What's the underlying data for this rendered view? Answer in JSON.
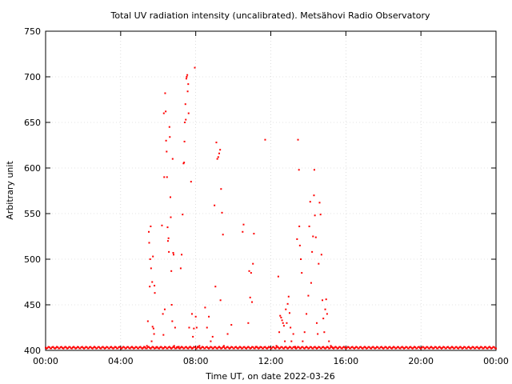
{
  "chart_data": {
    "type": "scatter",
    "title": "Total UV radiation intensity (uncalibrated). Metsähovi Radio Observatory",
    "xlabel": "Time UT, on date 2022-03-26",
    "ylabel": "Arbitrary unit",
    "xlim": [
      0,
      24
    ],
    "ylim": [
      400,
      750
    ],
    "x_ticks": [
      {
        "value": 0,
        "label": "00:00"
      },
      {
        "value": 4,
        "label": "04:00"
      },
      {
        "value": 8,
        "label": "08:00"
      },
      {
        "value": 12,
        "label": "12:00"
      },
      {
        "value": 16,
        "label": "16:00"
      },
      {
        "value": 20,
        "label": "20:00"
      },
      {
        "value": 24,
        "label": "00:00"
      }
    ],
    "y_ticks": [
      {
        "value": 400,
        "label": "400"
      },
      {
        "value": 450,
        "label": "450"
      },
      {
        "value": 500,
        "label": "500"
      },
      {
        "value": 550,
        "label": "550"
      },
      {
        "value": 600,
        "label": "600"
      },
      {
        "value": 650,
        "label": "650"
      },
      {
        "value": 700,
        "label": "700"
      },
      {
        "value": 750,
        "label": "750"
      }
    ],
    "grid": true,
    "point_color": "#ff0000",
    "baseline": {
      "value": 402,
      "x_start": 0,
      "x_end": 24,
      "step": 0.05
    },
    "series": [
      {
        "points": [
          [
            5.3,
            403
          ],
          [
            5.4,
            405
          ],
          [
            5.45,
            432
          ],
          [
            5.5,
            530
          ],
          [
            5.52,
            518
          ],
          [
            5.55,
            470
          ],
          [
            5.57,
            500
          ],
          [
            5.6,
            536
          ],
          [
            5.62,
            490
          ],
          [
            5.65,
            410
          ],
          [
            5.68,
            475
          ],
          [
            5.7,
            426
          ],
          [
            5.72,
            503
          ],
          [
            5.75,
            424
          ],
          [
            5.78,
            418
          ],
          [
            5.8,
            471
          ],
          [
            5.82,
            463
          ],
          [
            5.9,
            403
          ],
          [
            6.2,
            537
          ],
          [
            6.25,
            440
          ],
          [
            6.28,
            417
          ],
          [
            6.3,
            660
          ],
          [
            6.32,
            590
          ],
          [
            6.35,
            445
          ],
          [
            6.37,
            682
          ],
          [
            6.4,
            662
          ],
          [
            6.42,
            630
          ],
          [
            6.45,
            618
          ],
          [
            6.47,
            590
          ],
          [
            6.5,
            535
          ],
          [
            6.52,
            520
          ],
          [
            6.55,
            523
          ],
          [
            6.57,
            508
          ],
          [
            6.6,
            645
          ],
          [
            6.62,
            634
          ],
          [
            6.65,
            568
          ],
          [
            6.67,
            546
          ],
          [
            6.7,
            487
          ],
          [
            6.72,
            450
          ],
          [
            6.75,
            432
          ],
          [
            6.77,
            610
          ],
          [
            6.8,
            507
          ],
          [
            6.82,
            505
          ],
          [
            6.85,
            405
          ],
          [
            6.9,
            425
          ],
          [
            7.0,
            403
          ],
          [
            7.1,
            404
          ],
          [
            7.2,
            490
          ],
          [
            7.25,
            505
          ],
          [
            7.3,
            549
          ],
          [
            7.35,
            605
          ],
          [
            7.38,
            606
          ],
          [
            7.4,
            629
          ],
          [
            7.42,
            650
          ],
          [
            7.45,
            670
          ],
          [
            7.47,
            653
          ],
          [
            7.5,
            698
          ],
          [
            7.52,
            700
          ],
          [
            7.55,
            702
          ],
          [
            7.57,
            684
          ],
          [
            7.6,
            692
          ],
          [
            7.62,
            660
          ],
          [
            7.65,
            425
          ],
          [
            7.7,
            404
          ],
          [
            7.75,
            585
          ],
          [
            7.8,
            440
          ],
          [
            7.85,
            415
          ],
          [
            7.9,
            424
          ],
          [
            7.95,
            710
          ],
          [
            8.0,
            437
          ],
          [
            8.05,
            425
          ],
          [
            8.1,
            404
          ],
          [
            8.2,
            405
          ],
          [
            8.5,
            447
          ],
          [
            8.6,
            425
          ],
          [
            8.7,
            437
          ],
          [
            8.8,
            410
          ],
          [
            8.9,
            415
          ],
          [
            9.0,
            559
          ],
          [
            9.05,
            470
          ],
          [
            9.1,
            628
          ],
          [
            9.15,
            610
          ],
          [
            9.2,
            612
          ],
          [
            9.25,
            616
          ],
          [
            9.3,
            620
          ],
          [
            9.32,
            455
          ],
          [
            9.35,
            577
          ],
          [
            9.4,
            551
          ],
          [
            9.45,
            527
          ],
          [
            9.5,
            405
          ],
          [
            9.7,
            418
          ],
          [
            9.9,
            428
          ],
          [
            10.5,
            530
          ],
          [
            10.55,
            538
          ],
          [
            10.8,
            430
          ],
          [
            10.85,
            487
          ],
          [
            10.9,
            458
          ],
          [
            10.95,
            485
          ],
          [
            11.0,
            453
          ],
          [
            11.05,
            495
          ],
          [
            11.1,
            528
          ],
          [
            11.2,
            404
          ],
          [
            11.4,
            403
          ],
          [
            11.7,
            631
          ],
          [
            12.3,
            405
          ],
          [
            12.4,
            481
          ],
          [
            12.45,
            420
          ],
          [
            12.5,
            438
          ],
          [
            12.55,
            436
          ],
          [
            12.6,
            433
          ],
          [
            12.65,
            430
          ],
          [
            12.7,
            427
          ],
          [
            12.75,
            410
          ],
          [
            12.8,
            445
          ],
          [
            12.85,
            430
          ],
          [
            12.9,
            451
          ],
          [
            12.95,
            459
          ],
          [
            13.0,
            441
          ],
          [
            13.05,
            425
          ],
          [
            13.1,
            410
          ],
          [
            13.2,
            418
          ],
          [
            13.3,
            404
          ],
          [
            13.4,
            522
          ],
          [
            13.45,
            631
          ],
          [
            13.5,
            598
          ],
          [
            13.52,
            536
          ],
          [
            13.55,
            515
          ],
          [
            13.6,
            500
          ],
          [
            13.65,
            485
          ],
          [
            13.7,
            410
          ],
          [
            13.8,
            420
          ],
          [
            13.9,
            440
          ],
          [
            14.0,
            460
          ],
          [
            14.05,
            536
          ],
          [
            14.1,
            563
          ],
          [
            14.15,
            474
          ],
          [
            14.2,
            508
          ],
          [
            14.25,
            525
          ],
          [
            14.3,
            570
          ],
          [
            14.32,
            598
          ],
          [
            14.35,
            548
          ],
          [
            14.4,
            524
          ],
          [
            14.45,
            430
          ],
          [
            14.5,
            418
          ],
          [
            14.55,
            495
          ],
          [
            14.6,
            562
          ],
          [
            14.65,
            549
          ],
          [
            14.7,
            505
          ],
          [
            14.75,
            455
          ],
          [
            14.8,
            435
          ],
          [
            14.85,
            420
          ],
          [
            14.9,
            445
          ],
          [
            14.95,
            456
          ],
          [
            15.0,
            440
          ],
          [
            15.1,
            410
          ],
          [
            15.2,
            405
          ],
          [
            15.3,
            403
          ]
        ]
      }
    ]
  }
}
